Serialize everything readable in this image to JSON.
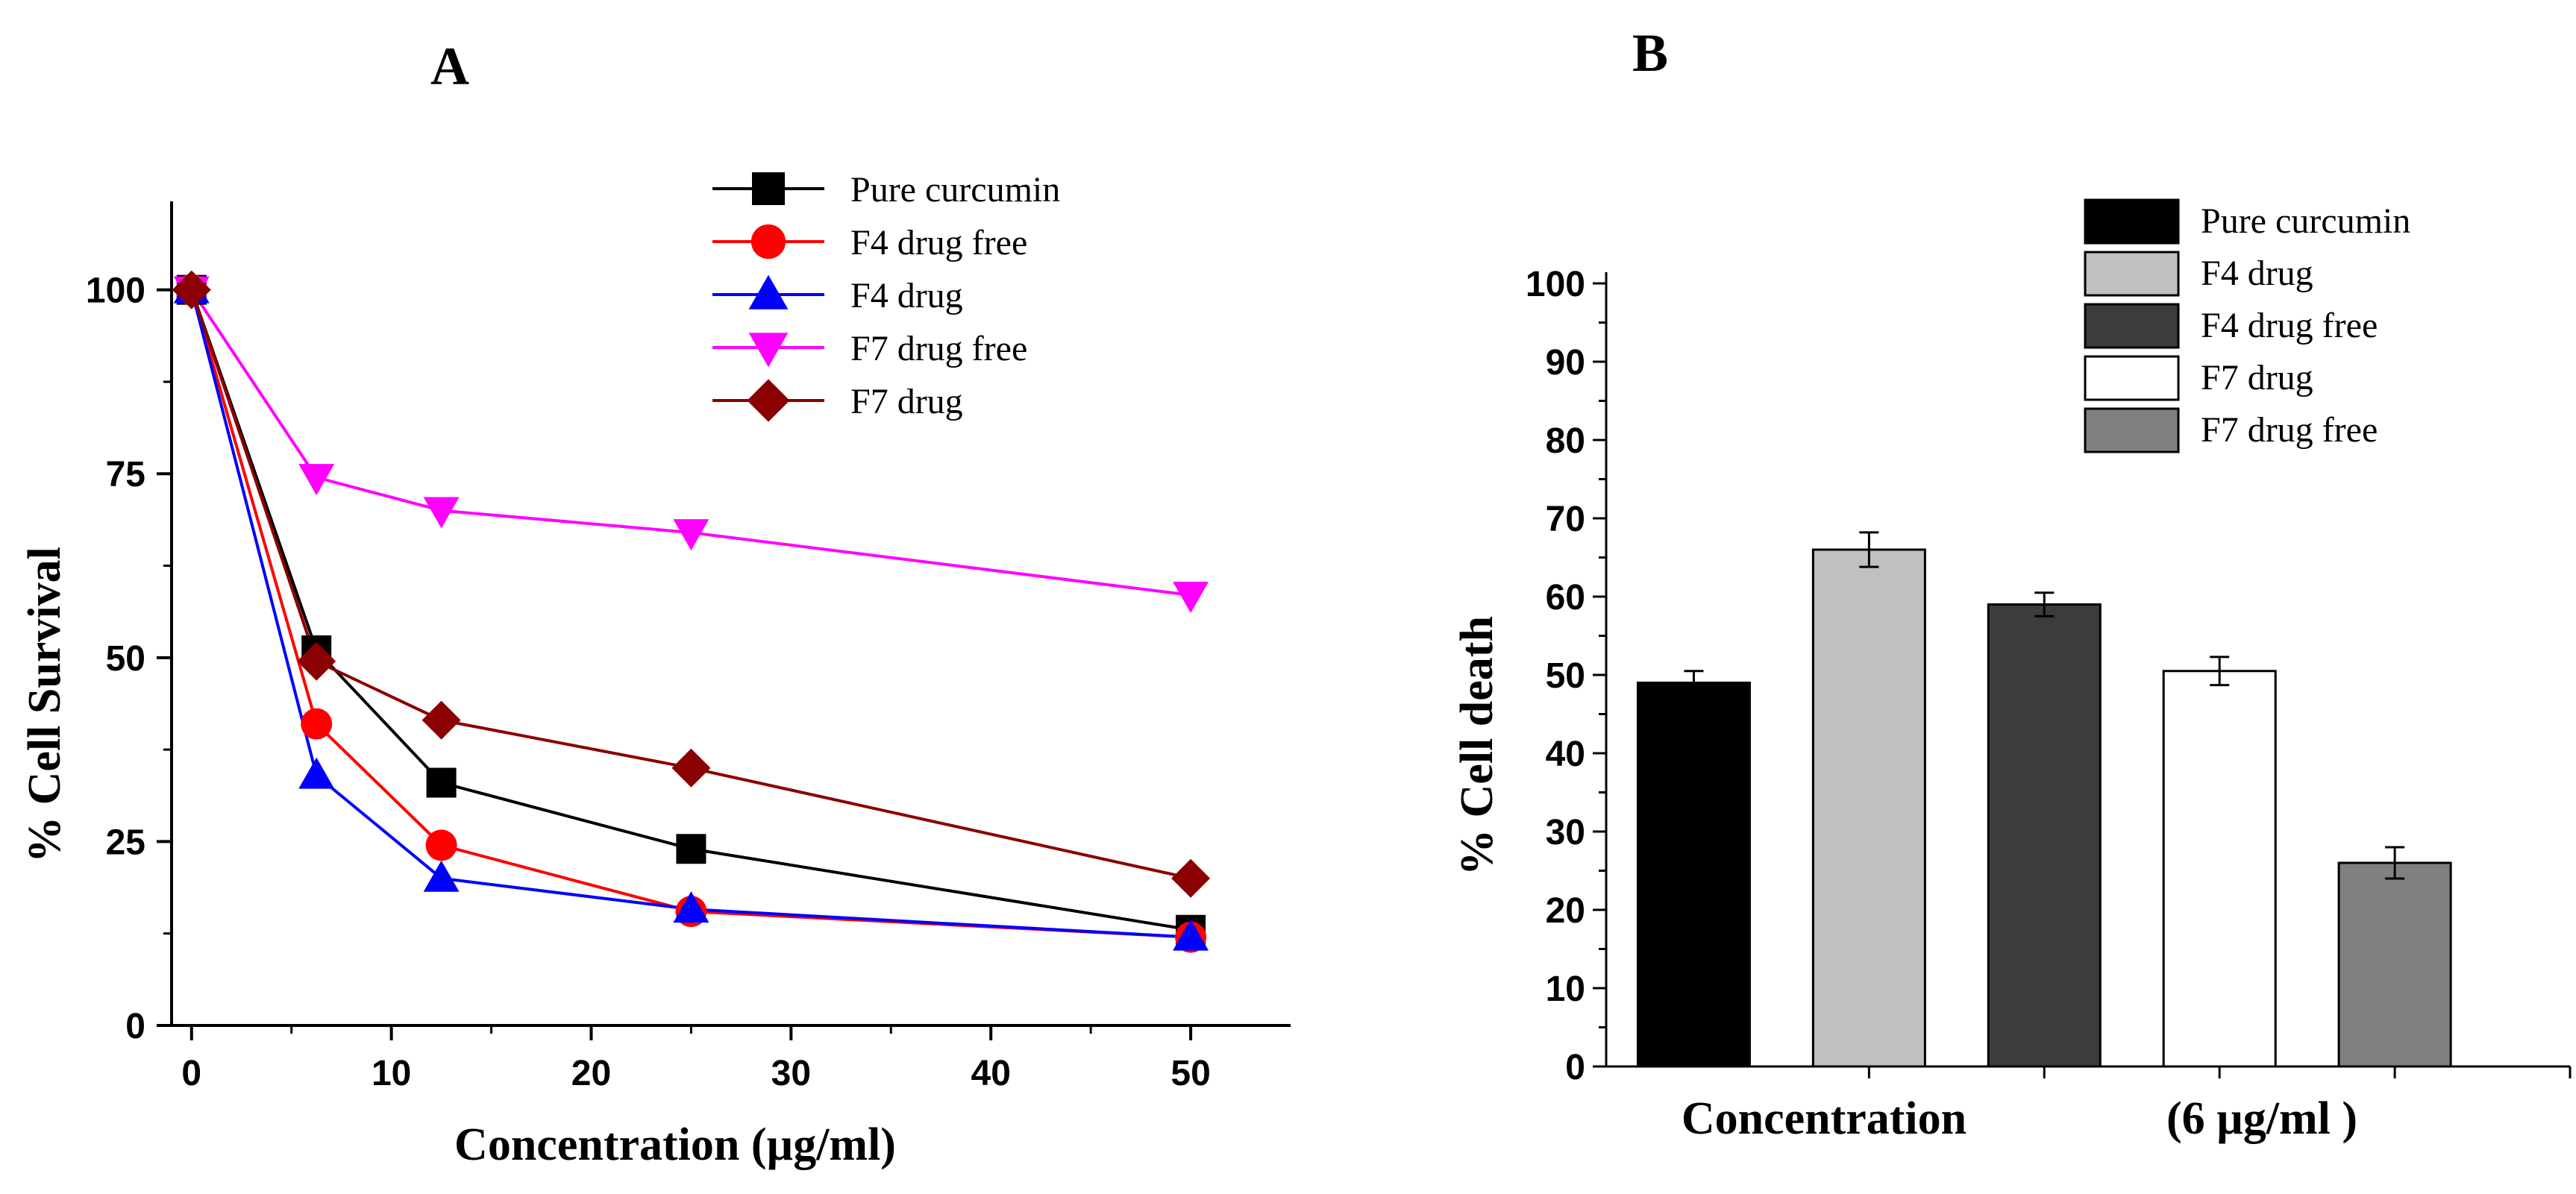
{
  "chart_data": [
    {
      "panel": "A",
      "type": "line",
      "title": "A",
      "xlabel": "Concentration (µg/ml)",
      "ylabel": "% Cell Survival",
      "xlim": [
        -1,
        55
      ],
      "ylim": [
        0,
        110
      ],
      "xticks": [
        0,
        10,
        20,
        30,
        40,
        50
      ],
      "yticks": [
        0,
        25,
        50,
        75,
        100
      ],
      "x": [
        0,
        6.25,
        12.5,
        25,
        50
      ],
      "legend_position": "top-right",
      "series": [
        {
          "name": "Pure curcumin",
          "marker": "square",
          "color": "#000000",
          "values": [
            100,
            51,
            33,
            24,
            13
          ]
        },
        {
          "name": "F4 drug free",
          "marker": "circle",
          "color": "#ff0000",
          "values": [
            100,
            41,
            24.5,
            15.5,
            12
          ]
        },
        {
          "name": "F4 drug",
          "marker": "triangle-up",
          "color": "#0000ff",
          "values": [
            100,
            34,
            20,
            15.8,
            12
          ]
        },
        {
          "name": "F7 drug free",
          "marker": "triangle-down",
          "color": "#ff00ff",
          "values": [
            100,
            74.5,
            70,
            67,
            58.5
          ]
        },
        {
          "name": "F7 drug",
          "marker": "diamond",
          "color": "#8b0000",
          "values": [
            100,
            49.5,
            41.5,
            35,
            20
          ]
        }
      ]
    },
    {
      "panel": "B",
      "type": "bar",
      "title": "B",
      "xlabel_left": "Concentration",
      "xlabel_right": "(6 µg/ml )",
      "ylabel": "% Cell death",
      "ylim": [
        0,
        100
      ],
      "yticks": [
        0,
        10,
        20,
        30,
        40,
        50,
        60,
        70,
        80,
        90,
        100
      ],
      "legend_position": "top-right",
      "categories": [
        "Pure curcumin",
        "F4 drug",
        "F4 drug free",
        "F7 drug",
        "F7 drug free"
      ],
      "values": [
        49,
        66,
        59,
        50.5,
        26
      ],
      "errors": [
        1.5,
        2.2,
        1.5,
        1.8,
        2.0
      ],
      "colors": [
        "#000000",
        "#c0c0c0",
        "#3c3c3c",
        "#ffffff",
        "#808080"
      ]
    }
  ]
}
